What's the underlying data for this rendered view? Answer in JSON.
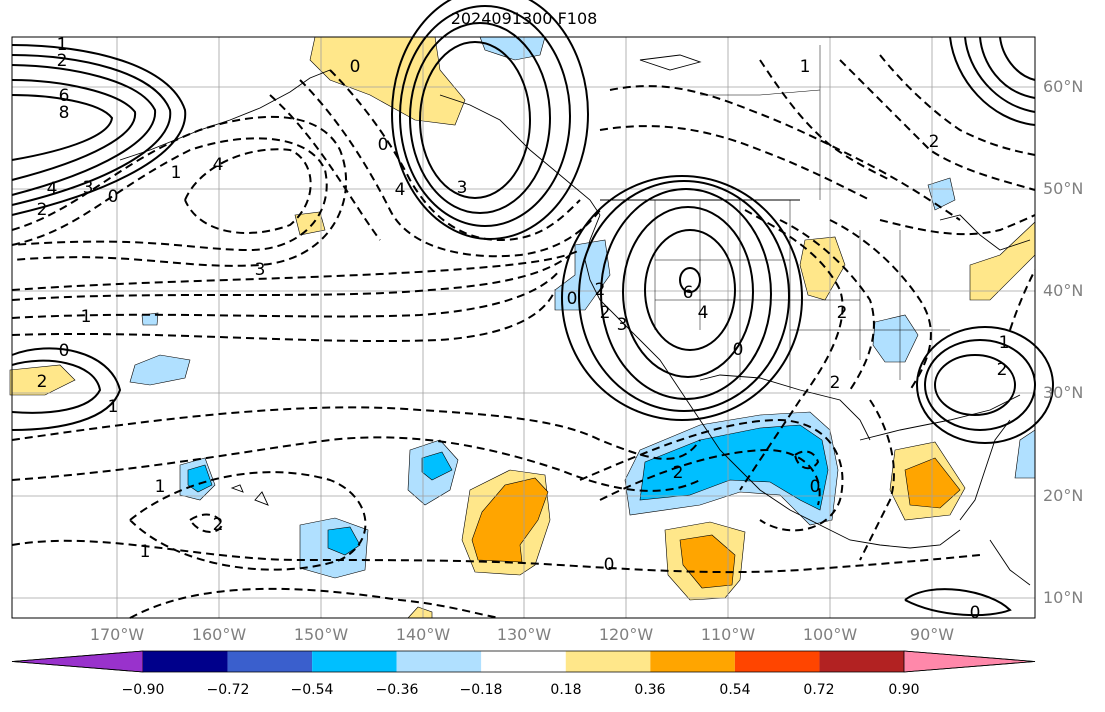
{
  "title": "2024091300 F108",
  "lat_labels": [
    "60°N",
    "50°N",
    "40°N",
    "30°N",
    "20°N",
    "10°N"
  ],
  "lon_labels": [
    "170°W",
    "160°W",
    "150°W",
    "140°W",
    "130°W",
    "120°W",
    "110°W",
    "100°W",
    "90°W"
  ],
  "colorbar": {
    "colors": [
      "#9932cc",
      "#00008b",
      "#3a5fcd",
      "#00bfff",
      "#b0e0ff",
      "#ffffff",
      "#ffe78a",
      "#ffa500",
      "#ff4500",
      "#b22222",
      "#ff88aa"
    ],
    "tick_labels": [
      "−0.90",
      "−0.72",
      "−0.54",
      "−0.36",
      "−0.18",
      "0.18",
      "0.36",
      "0.54",
      "0.72",
      "0.90"
    ]
  },
  "contour_labels": {
    "nw_lows": [
      "1",
      "2",
      "6",
      "8",
      "4",
      "3",
      "2",
      "0",
      "1"
    ],
    "gulf_alaska_high": [
      "0",
      "3",
      "4",
      "2"
    ],
    "central_pacific": [
      "4",
      "3",
      "1",
      "0",
      "2",
      "1"
    ],
    "west_us_high": [
      "0",
      "2",
      "3",
      "4",
      "6",
      "2",
      "0",
      "1"
    ],
    "east_us_high": [
      "1",
      "2",
      "2",
      "2",
      "2",
      "1"
    ],
    "tropics": [
      "1",
      "2",
      "2",
      "0",
      "0",
      "0",
      "1"
    ]
  }
}
